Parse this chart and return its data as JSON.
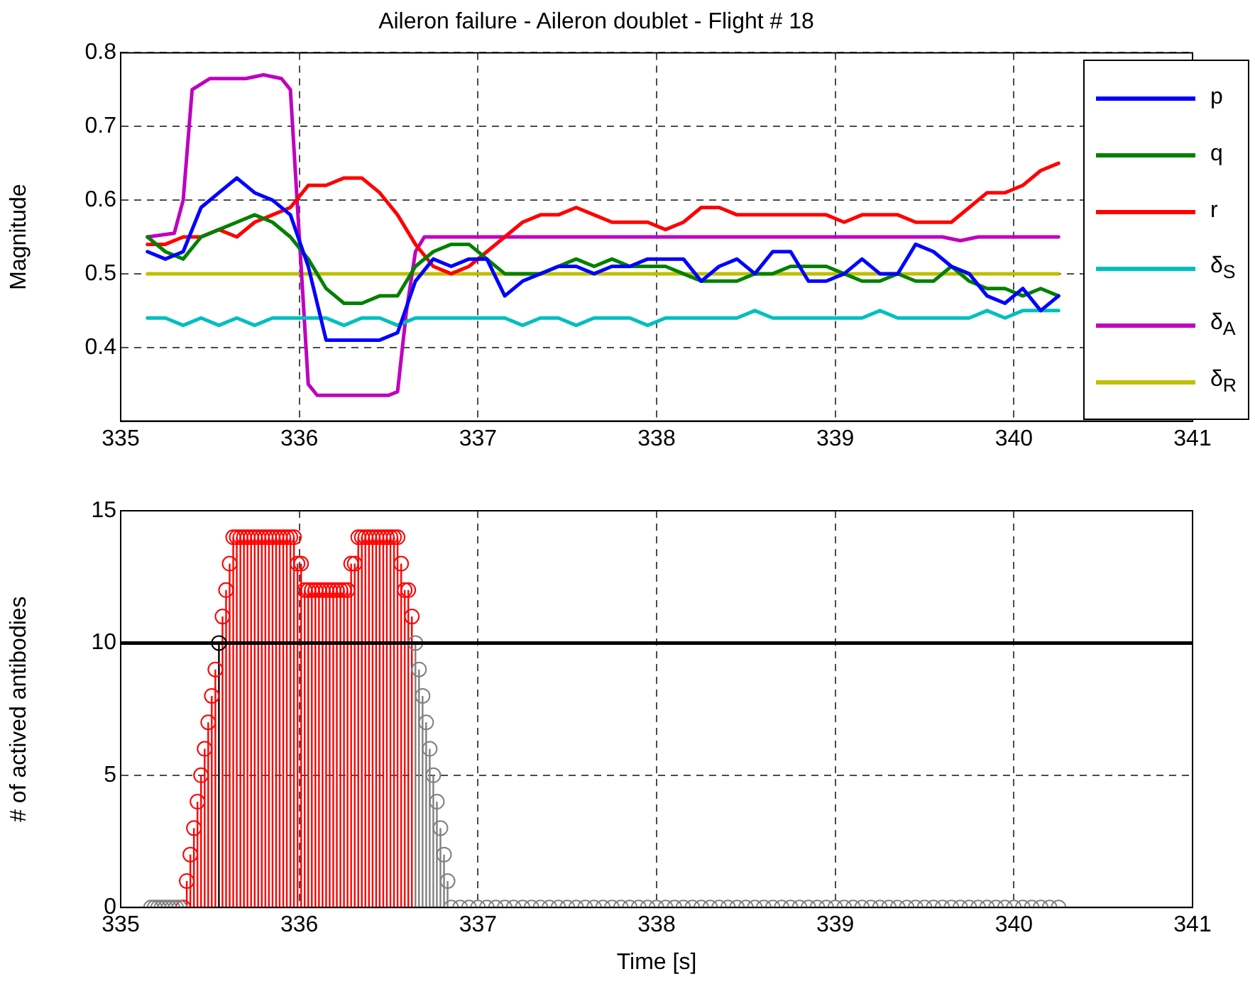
{
  "chart_data": [
    {
      "type": "line",
      "title": "Aileron failure - Aileron doublet - Flight # 18",
      "ylabel": "Magnitude",
      "x": [
        335.15,
        335.25,
        335.35,
        335.45,
        335.55,
        335.65,
        335.75,
        335.85,
        335.95,
        336.05,
        336.15,
        336.25,
        336.35,
        336.45,
        336.55,
        336.65,
        336.75,
        336.85,
        336.95,
        337.05,
        337.15,
        337.25,
        337.35,
        337.45,
        337.55,
        337.65,
        337.75,
        337.85,
        337.95,
        338.05,
        338.15,
        338.25,
        338.35,
        338.45,
        338.55,
        338.65,
        338.75,
        338.85,
        338.95,
        339.05,
        339.15,
        339.25,
        339.35,
        339.45,
        339.55,
        339.65,
        339.75,
        339.85,
        339.95,
        340.05,
        340.15,
        340.25
      ],
      "series": [
        {
          "name": "p",
          "color": "#0000ff",
          "values": [
            0.53,
            0.52,
            0.53,
            0.59,
            0.61,
            0.63,
            0.61,
            0.6,
            0.58,
            0.51,
            0.41,
            0.41,
            0.41,
            0.41,
            0.42,
            0.49,
            0.52,
            0.51,
            0.52,
            0.52,
            0.47,
            0.49,
            0.5,
            0.51,
            0.51,
            0.5,
            0.51,
            0.51,
            0.52,
            0.52,
            0.52,
            0.49,
            0.51,
            0.52,
            0.5,
            0.53,
            0.53,
            0.49,
            0.49,
            0.5,
            0.52,
            0.5,
            0.5,
            0.54,
            0.53,
            0.51,
            0.5,
            0.47,
            0.46,
            0.48,
            0.45,
            0.47
          ]
        },
        {
          "name": "q",
          "color": "#008000",
          "values": [
            0.55,
            0.53,
            0.52,
            0.55,
            0.56,
            0.57,
            0.58,
            0.57,
            0.55,
            0.52,
            0.48,
            0.46,
            0.46,
            0.47,
            0.47,
            0.51,
            0.53,
            0.54,
            0.54,
            0.52,
            0.5,
            0.5,
            0.5,
            0.51,
            0.52,
            0.51,
            0.52,
            0.51,
            0.51,
            0.51,
            0.5,
            0.49,
            0.49,
            0.49,
            0.5,
            0.5,
            0.51,
            0.51,
            0.51,
            0.5,
            0.49,
            0.49,
            0.5,
            0.49,
            0.49,
            0.51,
            0.49,
            0.48,
            0.48,
            0.47,
            0.48,
            0.47
          ]
        },
        {
          "name": "r",
          "color": "#ff0000",
          "values": [
            0.54,
            0.54,
            0.55,
            0.55,
            0.56,
            0.55,
            0.57,
            0.58,
            0.59,
            0.62,
            0.62,
            0.63,
            0.63,
            0.61,
            0.58,
            0.54,
            0.51,
            0.5,
            0.51,
            0.53,
            0.55,
            0.57,
            0.58,
            0.58,
            0.59,
            0.58,
            0.57,
            0.57,
            0.57,
            0.56,
            0.57,
            0.59,
            0.59,
            0.58,
            0.58,
            0.58,
            0.58,
            0.58,
            0.58,
            0.57,
            0.58,
            0.58,
            0.58,
            0.57,
            0.57,
            0.57,
            0.59,
            0.61,
            0.61,
            0.62,
            0.64,
            0.65
          ]
        },
        {
          "name": "δ$_{S}$",
          "color": "#00bfbf",
          "values": [
            0.44,
            0.44,
            0.43,
            0.44,
            0.43,
            0.44,
            0.43,
            0.44,
            0.44,
            0.44,
            0.44,
            0.43,
            0.44,
            0.44,
            0.43,
            0.44,
            0.44,
            0.44,
            0.44,
            0.44,
            0.44,
            0.43,
            0.44,
            0.44,
            0.43,
            0.44,
            0.44,
            0.44,
            0.43,
            0.44,
            0.44,
            0.44,
            0.44,
            0.44,
            0.45,
            0.44,
            0.44,
            0.44,
            0.44,
            0.44,
            0.44,
            0.45,
            0.44,
            0.44,
            0.44,
            0.44,
            0.44,
            0.45,
            0.44,
            0.45,
            0.45,
            0.45
          ]
        },
        {
          "name": "δ$_{A}$",
          "color": "#bf00bf",
          "x": [
            335.15,
            335.3,
            335.35,
            335.4,
            335.5,
            335.6,
            335.7,
            335.8,
            335.9,
            335.95,
            336.0,
            336.05,
            336.1,
            336.3,
            336.5,
            336.55,
            336.6,
            336.65,
            336.7,
            337.0,
            338.0,
            339.0,
            339.6,
            339.7,
            339.8,
            340.25
          ],
          "values": [
            0.55,
            0.555,
            0.6,
            0.75,
            0.765,
            0.765,
            0.765,
            0.77,
            0.765,
            0.75,
            0.55,
            0.35,
            0.335,
            0.335,
            0.335,
            0.34,
            0.45,
            0.53,
            0.55,
            0.55,
            0.55,
            0.55,
            0.55,
            0.545,
            0.55,
            0.55
          ]
        },
        {
          "name": "δ$_{R}$",
          "color": "#bfbf00",
          "x": [
            335.15,
            340.25
          ],
          "values": [
            0.5,
            0.5
          ]
        }
      ],
      "xlim": [
        335,
        341
      ],
      "xticks": [
        335,
        336,
        337,
        338,
        339,
        340,
        341
      ],
      "ylim": [
        0.3,
        0.8
      ],
      "yticks": [
        0.4,
        0.5,
        0.6,
        0.7,
        0.8
      ],
      "grid": true,
      "legend": "right",
      "marker": "none",
      "line_style": "solid"
    },
    {
      "type": "lollipop",
      "xlabel": "Time [s]",
      "ylabel": "# of actived antibodies",
      "series": [
        {
          "color": "#808080",
          "x": [
            335.17,
            335.19,
            335.21,
            335.23,
            335.25,
            335.27,
            335.29,
            335.31,
            335.33,
            336.65,
            336.67,
            336.69,
            336.71,
            336.73,
            336.75,
            336.77,
            336.79,
            336.81,
            336.83,
            336.85,
            336.9,
            336.95,
            337.0,
            337.05,
            337.1,
            337.15,
            337.2,
            337.25,
            337.3,
            337.35,
            337.4,
            337.45,
            337.5,
            337.55,
            337.6,
            337.65,
            337.7,
            337.75,
            337.8,
            337.85,
            337.9,
            337.95,
            338.0,
            338.05,
            338.1,
            338.15,
            338.2,
            338.25,
            338.3,
            338.35,
            338.4,
            338.45,
            338.5,
            338.55,
            338.6,
            338.65,
            338.7,
            338.75,
            338.8,
            338.85,
            338.9,
            338.95,
            339.0,
            339.05,
            339.1,
            339.15,
            339.2,
            339.25,
            339.3,
            339.35,
            339.4,
            339.45,
            339.5,
            339.55,
            339.6,
            339.65,
            339.7,
            339.75,
            339.8,
            339.85,
            339.9,
            339.95,
            340.0,
            340.05,
            340.1,
            340.15,
            340.2,
            340.25
          ],
          "values": [
            0,
            0,
            0,
            0,
            0,
            0,
            0,
            0,
            0,
            10,
            9,
            8,
            7,
            6,
            5,
            4,
            3,
            2,
            1,
            0,
            0,
            0,
            0,
            0,
            0,
            0,
            0,
            0,
            0,
            0,
            0,
            0,
            0,
            0,
            0,
            0,
            0,
            0,
            0,
            0,
            0,
            0,
            0,
            0,
            0,
            0,
            0,
            0,
            0,
            0,
            0,
            0,
            0,
            0,
            0,
            0,
            0,
            0,
            0,
            0,
            0,
            0,
            0,
            0,
            0,
            0,
            0,
            0,
            0,
            0,
            0,
            0,
            0,
            0,
            0,
            0,
            0,
            0,
            0,
            0,
            0,
            0,
            0,
            0,
            0,
            0,
            0,
            0
          ]
        },
        {
          "color": "#ff0000",
          "x": [
            335.37,
            335.39,
            335.41,
            335.43,
            335.45,
            335.47,
            335.49,
            335.51,
            335.53,
            335.57,
            335.59,
            335.61,
            335.63,
            335.65,
            335.67,
            335.69,
            335.71,
            335.73,
            335.75,
            335.77,
            335.79,
            335.81,
            335.83,
            335.85,
            335.87,
            335.89,
            335.91,
            335.93,
            335.95,
            335.97,
            335.99,
            336.01,
            336.03,
            336.05,
            336.07,
            336.09,
            336.11,
            336.13,
            336.15,
            336.17,
            336.19,
            336.21,
            336.23,
            336.25,
            336.27,
            336.29,
            336.31,
            336.33,
            336.35,
            336.37,
            336.39,
            336.41,
            336.43,
            336.45,
            336.47,
            336.49,
            336.51,
            336.53,
            336.55,
            336.57,
            336.59,
            336.61
          ],
          "values": [
            1,
            2,
            3,
            4,
            5,
            6,
            7,
            8,
            9,
            11,
            12,
            13,
            14,
            14,
            14,
            14,
            14,
            14,
            14,
            14,
            14,
            14,
            14,
            14,
            14,
            14,
            14,
            14,
            14,
            14,
            13,
            13,
            12,
            12,
            12,
            12,
            12,
            12,
            12,
            12,
            12,
            12,
            12,
            12,
            12,
            13,
            13,
            14,
            14,
            14,
            14,
            14,
            14,
            14,
            14,
            14,
            14,
            14,
            14,
            13,
            12,
            12
          ]
        },
        {
          "color": "#ff0000",
          "x": [
            335.35,
            336.63
          ],
          "values": [
            0,
            11
          ]
        },
        {
          "color": "#000000",
          "x": [
            335.55
          ],
          "values": [
            10
          ]
        }
      ],
      "xlim": [
        335,
        341
      ],
      "xticks": [
        335,
        336,
        337,
        338,
        339,
        340,
        341
      ],
      "ylim": [
        0,
        15
      ],
      "yticks": [
        0,
        5,
        10,
        15
      ],
      "grid": true,
      "marker": "circle",
      "ref_lines": [
        {
          "axis": "y",
          "value": 10,
          "color": "#000000"
        }
      ]
    }
  ]
}
